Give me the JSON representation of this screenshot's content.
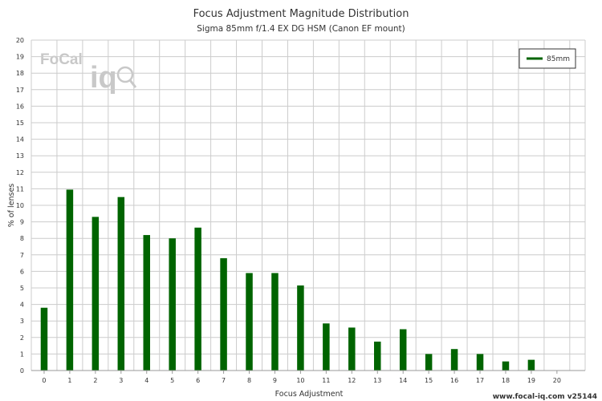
{
  "chart_data": {
    "type": "bar",
    "title": "Focus Adjustment Magnitude Distribution",
    "subtitle": "Sigma 85mm f/1.4 EX DG HSM (Canon EF mount)",
    "xlabel": "Focus Adjustment",
    "ylabel": "% of lenses",
    "categories": [
      "0",
      "1",
      "2",
      "3",
      "4",
      "5",
      "6",
      "7",
      "8",
      "9",
      "10",
      "11",
      "12",
      "13",
      "14",
      "15",
      "16",
      "17",
      "18",
      "19",
      "20"
    ],
    "series": [
      {
        "name": "85mm",
        "color": "#006400",
        "values": [
          3.8,
          10.95,
          9.3,
          10.5,
          8.2,
          8.0,
          8.65,
          6.8,
          5.9,
          5.9,
          5.15,
          2.85,
          2.6,
          1.75,
          2.5,
          1.0,
          1.3,
          1.0,
          0.55,
          0.65,
          0
        ]
      }
    ],
    "ylim": [
      0,
      20
    ],
    "yticks": [
      0,
      1,
      2,
      3,
      4,
      5,
      6,
      7,
      8,
      9,
      10,
      11,
      12,
      13,
      14,
      15,
      16,
      17,
      18,
      19,
      20
    ],
    "grid": true,
    "legend_position": "top-right"
  },
  "logo": {
    "text_top": "FoCal",
    "text_bottom": "iq"
  },
  "footer": {
    "text": "www.focal-iq.com v25144"
  },
  "colors": {
    "grid": "#cccccc",
    "bar": "#006400",
    "axis": "#999999"
  }
}
